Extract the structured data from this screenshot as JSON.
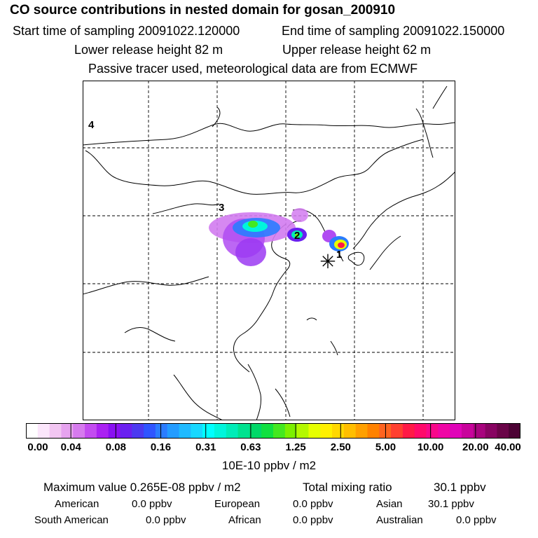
{
  "header": {
    "title": "CO  source contributions in nested domain for gosan_200910",
    "start_label": "Start time of sampling 20091022.120000",
    "end_label": "End time of sampling 20091022.150000",
    "lower_label": "Lower release height   82 m",
    "upper_label": "Upper release height   62 m",
    "tracer_note": "Passive tracer used, meteorological data are from ECMWF"
  },
  "chart_data": {
    "type": "heatmap",
    "title": "CO  source contributions in nested domain for gosan_200910",
    "colorbar": {
      "tick_labels": [
        "0.00",
        "0.04",
        "0.08",
        "0.16",
        "0.31",
        "0.63",
        "1.25",
        "2.50",
        "5.00",
        "10.00",
        "20.00",
        "40.00"
      ],
      "tick_values": [
        0.0,
        0.04,
        0.08,
        0.16,
        0.31,
        0.63,
        1.25,
        2.5,
        5.0,
        10.0,
        20.0,
        40.0
      ],
      "units": "10E-10 ppbv / m2",
      "colors": [
        "#ffffff",
        "#fbe6fb",
        "#f2c6f2",
        "#e6a3ef",
        "#d67bee",
        "#c34cf0",
        "#aa22f2",
        "#8a10f2",
        "#6a20f0",
        "#4b3af0",
        "#2f55ff",
        "#2a7cff",
        "#239cff",
        "#1fbaff",
        "#17d8ff",
        "#00ffff",
        "#00f5dc",
        "#00ecb8",
        "#00e28f",
        "#00d868",
        "#10e040",
        "#44e820",
        "#7cf000",
        "#b4f800",
        "#e6ff00",
        "#fff000",
        "#ffd800",
        "#ffbe00",
        "#ffa000",
        "#ff8200",
        "#ff6420",
        "#ff4030",
        "#ff1a46",
        "#ff0a6a",
        "#f8088a",
        "#ef06a5",
        "#e004b8",
        "#c8049c",
        "#a8047e",
        "#880462",
        "#6a0448",
        "#4c0234"
      ]
    },
    "markers": [
      "1",
      "2",
      "3",
      "4"
    ],
    "release_site_glyph": "✳",
    "max_value": "0.265E-08",
    "total_mixing_ratio": "30.1"
  },
  "summary": {
    "max_label": "Maximum value  0.265E-08 ppbv / m2",
    "total_label": "Total mixing ratio",
    "total_value": "30.1 ppbv",
    "regions": [
      {
        "name": "American",
        "value": "0.0 ppbv"
      },
      {
        "name": "European",
        "value": "0.0 ppbv"
      },
      {
        "name": "Asian",
        "value": "30.1 ppbv"
      },
      {
        "name": "South American",
        "value": "0.0 ppbv"
      },
      {
        "name": "African",
        "value": "0.0 ppbv"
      },
      {
        "name": "Australian",
        "value": "0.0 ppbv"
      }
    ]
  }
}
